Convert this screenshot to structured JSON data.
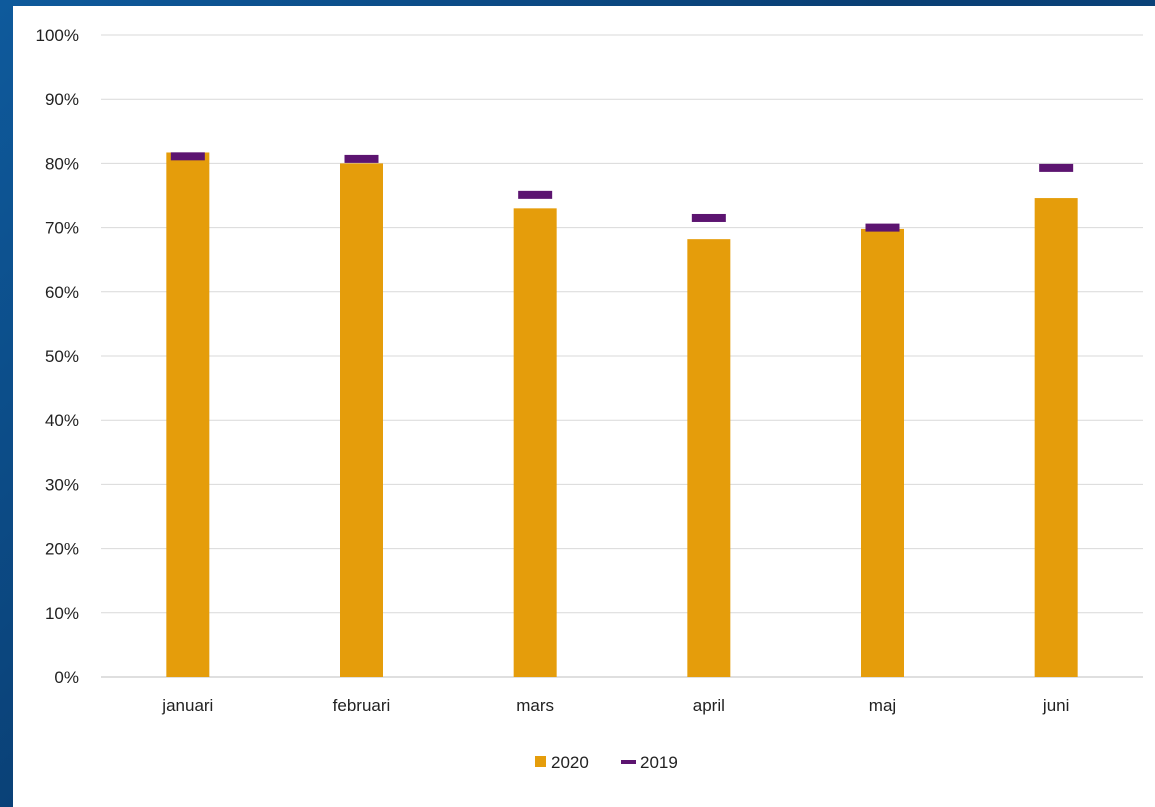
{
  "colors": {
    "series_2020": "#E59D0B",
    "series_2019": "#5C1470",
    "grid": "#d9d9d9",
    "background_frame": "#0b4a82"
  },
  "legend": {
    "placement": "bottom-center",
    "items": [
      {
        "label": "2020",
        "marker": "square"
      },
      {
        "label": "2019",
        "marker": "dash"
      }
    ]
  },
  "chart_data": {
    "type": "bar",
    "title": "",
    "xlabel": "",
    "ylabel": "",
    "categories": [
      "januari",
      "februari",
      "mars",
      "april",
      "maj",
      "juni"
    ],
    "ylim": [
      0,
      100
    ],
    "y_ticks": [
      "0%",
      "10%",
      "20%",
      "30%",
      "40%",
      "50%",
      "60%",
      "70%",
      "80%",
      "90%",
      "100%"
    ],
    "grid": true,
    "series": [
      {
        "name": "2020",
        "kind": "bar",
        "values": [
          81.7,
          80.0,
          73.0,
          68.2,
          69.8,
          74.6
        ]
      },
      {
        "name": "2019",
        "kind": "marker",
        "values": [
          81.1,
          80.7,
          75.1,
          71.5,
          70.0,
          79.3
        ]
      }
    ]
  }
}
